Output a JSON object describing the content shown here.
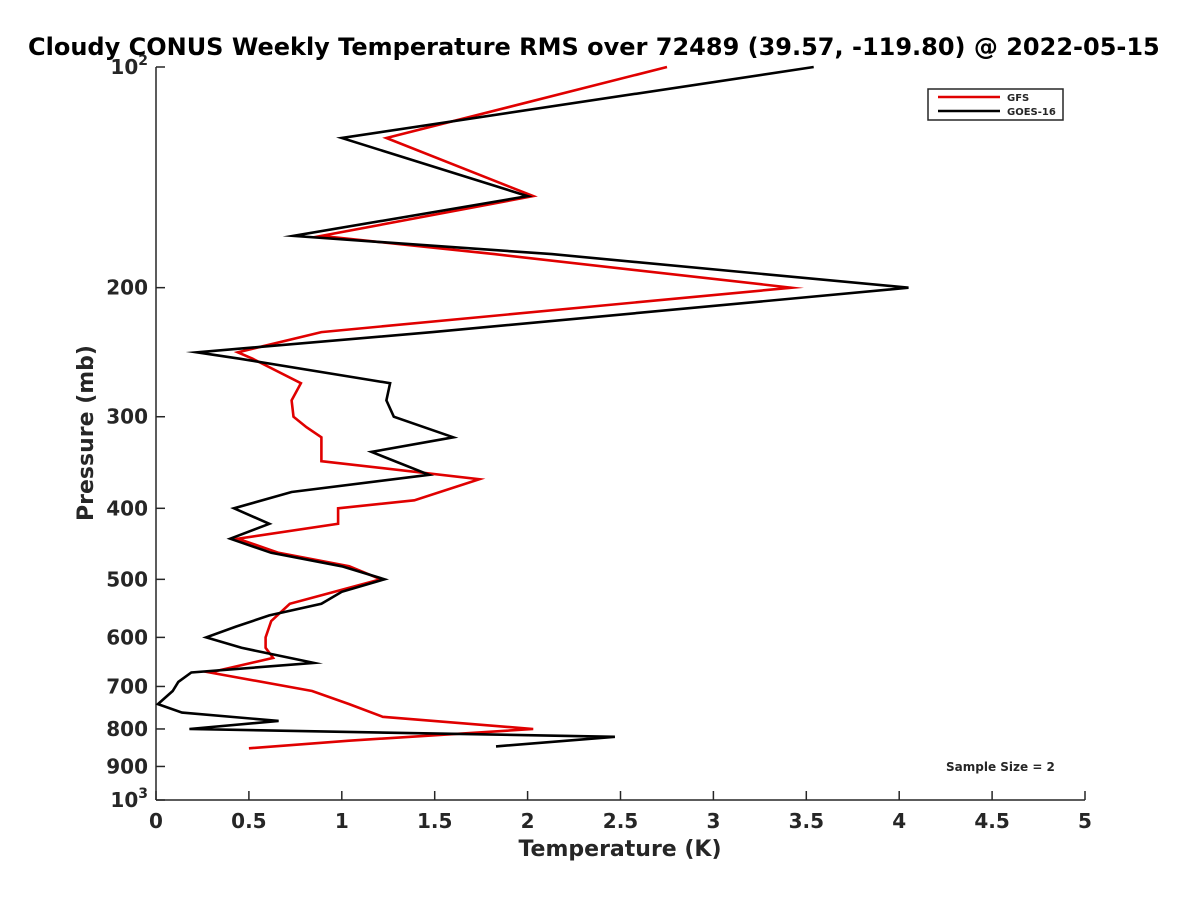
{
  "chart_data": {
    "type": "line",
    "title": "Cloudy CONUS Weekly Temperature RMS over 72489 (39.57, -119.80) @ 2022-05-15",
    "xlabel": "Temperature (K)",
    "ylabel": "Pressure (mb)",
    "xlim": [
      0,
      5
    ],
    "ylim": [
      100,
      1000
    ],
    "y_scale": "log",
    "y_reversed": true,
    "x_ticks": [
      "0",
      "0.5",
      "1",
      "1.5",
      "2",
      "2.5",
      "3",
      "3.5",
      "4",
      "4.5",
      "5"
    ],
    "y_ticks": [
      {
        "value": 100,
        "base": "10",
        "exp": "2"
      },
      {
        "value": 200,
        "label": "200"
      },
      {
        "value": 300,
        "label": "300"
      },
      {
        "value": 400,
        "label": "400"
      },
      {
        "value": 500,
        "label": "500"
      },
      {
        "value": 600,
        "label": "600"
      },
      {
        "value": 700,
        "label": "700"
      },
      {
        "value": 800,
        "label": "800"
      },
      {
        "value": 900,
        "label": "900"
      },
      {
        "value": 1000,
        "base": "10",
        "exp": "3"
      }
    ],
    "grid": false,
    "legend_position": "top-right",
    "annotation": "Sample Size = 2",
    "series": [
      {
        "name": "GFS",
        "color": "#e00000",
        "x": [
          2.75,
          1.24,
          2.03,
          0.89,
          1.82,
          3.42,
          0.89,
          0.44,
          0.52,
          0.78,
          0.73,
          0.74,
          0.81,
          0.89,
          0.89,
          1.74,
          1.39,
          0.98,
          0.98,
          0.44,
          0.66,
          1.04,
          1.21,
          0.72,
          0.62,
          0.59,
          0.59,
          0.63,
          0.29,
          0.84,
          1.04,
          1.22,
          2.03,
          1.04,
          0.5
        ],
        "y": [
          100,
          125,
          150,
          170,
          180,
          200,
          230,
          245,
          250,
          270,
          285,
          300,
          310,
          320,
          345,
          365,
          390,
          400,
          420,
          440,
          460,
          480,
          500,
          540,
          570,
          600,
          620,
          640,
          670,
          710,
          740,
          770,
          800,
          830,
          850
        ]
      },
      {
        "name": "GOES-16",
        "color": "#000000",
        "x": [
          3.54,
          1.0,
          2.0,
          0.74,
          2.13,
          4.05,
          1.49,
          0.22,
          0.45,
          1.26,
          1.24,
          1.28,
          1.6,
          1.16,
          1.47,
          0.73,
          0.42,
          0.61,
          0.4,
          0.62,
          1.0,
          1.23,
          1.0,
          0.89,
          0.61,
          0.43,
          0.27,
          0.46,
          0.85,
          0.19,
          0.12,
          0.09,
          0.01,
          0.14,
          0.66,
          0.18,
          2.47,
          1.83
        ],
        "y": [
          100,
          125,
          150,
          170,
          180,
          200,
          230,
          245,
          250,
          270,
          285,
          300,
          320,
          335,
          360,
          380,
          400,
          420,
          440,
          460,
          480,
          500,
          520,
          540,
          560,
          580,
          600,
          620,
          650,
          670,
          690,
          710,
          740,
          760,
          780,
          800,
          820,
          845
        ]
      }
    ]
  }
}
